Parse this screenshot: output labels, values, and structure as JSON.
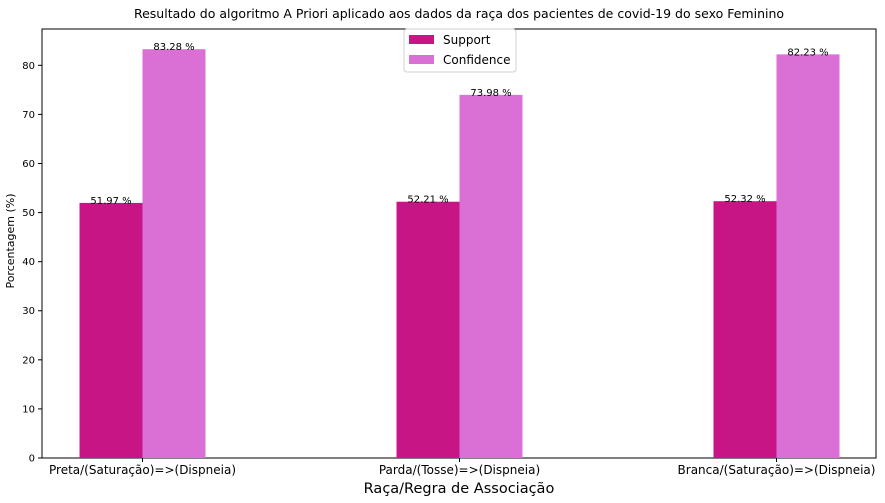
{
  "chart_data": {
    "type": "bar",
    "title": "Resultado do algoritmo A Priori aplicado aos dados da raça dos pacientes de covid-19 do sexo Feminino",
    "xlabel": "Raça/Regra de Associação",
    "ylabel": "Porcentagem (%)",
    "categories": [
      "Preta/(Saturação)=>(Dispneia)",
      "Parda/(Tosse)=>(Dispneia)",
      "Branca/(Saturação)=>(Dispneia)"
    ],
    "series": [
      {
        "name": "Support",
        "color": "#c71585",
        "values": [
          51.97,
          52.21,
          52.32
        ],
        "labels": [
          "51.97 %",
          "52.21 %",
          "52.32 %"
        ]
      },
      {
        "name": "Confidence",
        "color": "#da70d6",
        "values": [
          83.28,
          73.98,
          82.23
        ],
        "labels": [
          "83.28 %",
          "73.98 %",
          "82.23 %"
        ]
      }
    ],
    "yticks": [
      "0",
      "10",
      "20",
      "30",
      "40",
      "50",
      "60",
      "70",
      "80"
    ],
    "ylim": [
      0,
      87.4
    ],
    "grid": false,
    "legend_position": "top-center"
  }
}
